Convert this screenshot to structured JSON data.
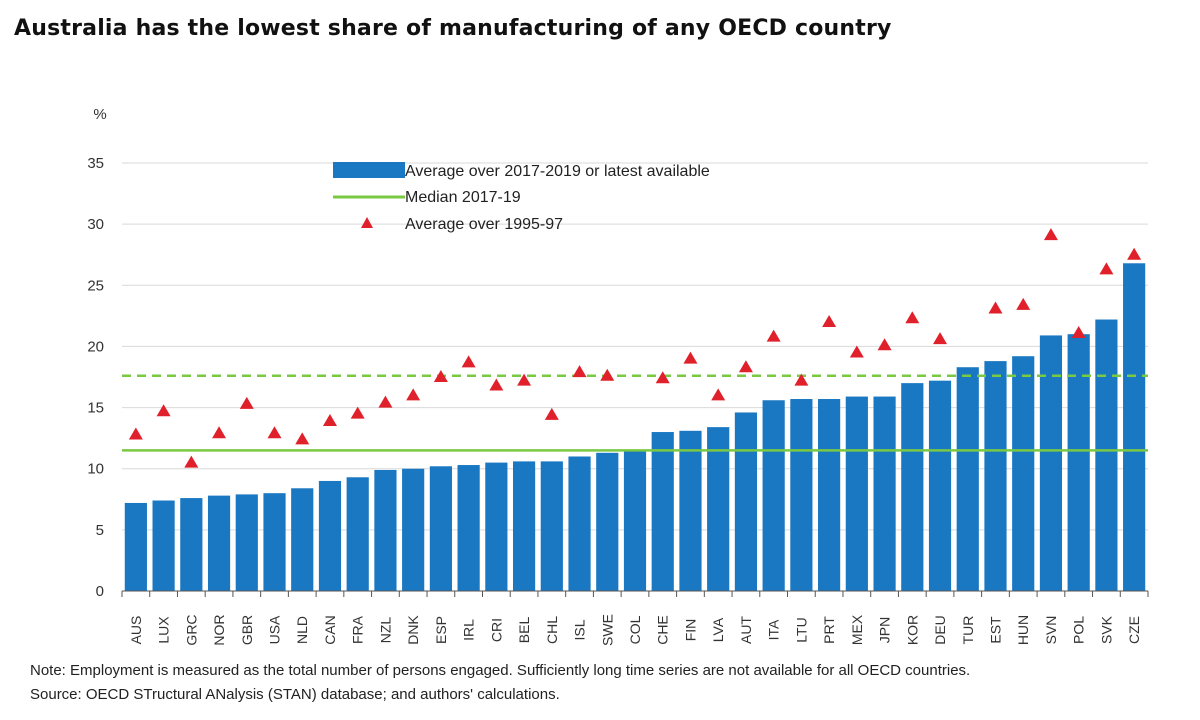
{
  "title": "Australia has the lowest share of manufacturing of any OECD country",
  "note": "Note: Employment is measured as the total number of persons engaged. Sufficiently long time series are not available for all OECD countries.",
  "source": "Source: OECD STructural ANalysis (STAN) database; and authors' calculations.",
  "colors": {
    "bar": "#1a78c2",
    "median": "#7ac943",
    "triangle": "#e0202a",
    "grid": "#d9d9d9"
  },
  "chart_data": {
    "type": "bar",
    "ylabel": "%",
    "ylim": [
      0,
      35
    ],
    "yticks": [
      0,
      5,
      10,
      15,
      20,
      25,
      30,
      35
    ],
    "grid": true,
    "legend_position": "top-center",
    "categories": [
      "AUS",
      "LUX",
      "GRC",
      "NOR",
      "GBR",
      "USA",
      "NLD",
      "CAN",
      "FRA",
      "NZL",
      "DNK",
      "ESP",
      "IRL",
      "CRI",
      "BEL",
      "CHL",
      "ISL",
      "SWE",
      "COL",
      "CHE",
      "FIN",
      "LVA",
      "AUT",
      "ITA",
      "LTU",
      "PRT",
      "MEX",
      "JPN",
      "KOR",
      "DEU",
      "TUR",
      "EST",
      "HUN",
      "SVN",
      "POL",
      "SVK",
      "CZE"
    ],
    "series": [
      {
        "name": "Average over 2017-2019 or latest available",
        "kind": "bar",
        "values": [
          7.2,
          7.4,
          7.6,
          7.8,
          7.9,
          8.0,
          8.4,
          9.0,
          9.3,
          9.9,
          10.0,
          10.2,
          10.3,
          10.5,
          10.6,
          10.6,
          11.0,
          11.3,
          11.5,
          13.0,
          13.1,
          13.4,
          14.6,
          15.6,
          15.7,
          15.7,
          15.9,
          15.9,
          17.0,
          17.2,
          18.3,
          18.8,
          19.2,
          20.9,
          21.0,
          22.2,
          26.8
        ]
      },
      {
        "name": "Median 2017-19",
        "kind": "line",
        "value": 11.5
      },
      {
        "name": "",
        "kind": "line-dashed",
        "value": 17.6
      },
      {
        "name": "Average over 1995-97",
        "kind": "triangle",
        "values": [
          12.8,
          14.7,
          10.5,
          12.9,
          15.3,
          12.9,
          12.4,
          13.9,
          14.5,
          15.4,
          16.0,
          17.5,
          18.7,
          16.8,
          17.2,
          14.4,
          17.9,
          17.6,
          null,
          17.4,
          19.0,
          16.0,
          18.3,
          20.8,
          17.2,
          22.0,
          19.5,
          20.1,
          22.3,
          20.6,
          null,
          23.1,
          23.4,
          29.1,
          21.1,
          26.3,
          27.5
        ]
      }
    ]
  }
}
